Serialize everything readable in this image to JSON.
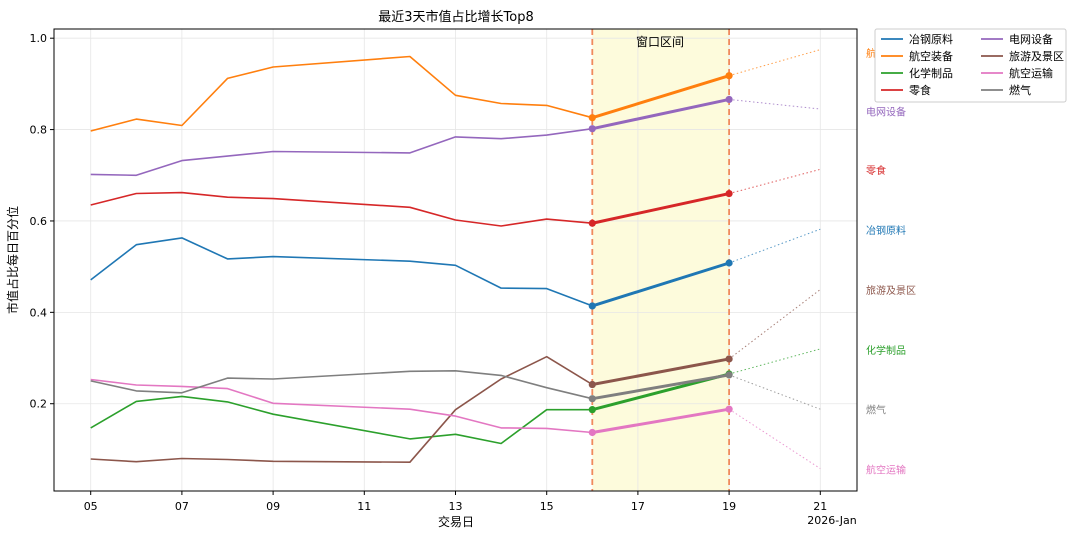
{
  "chart_data": {
    "type": "line",
    "title": "最近3天市值占比增长Top8",
    "xlabel": "交易日",
    "ylabel": "市值占比每日百分位",
    "xlim": [
      "2026-01-03.8",
      "2026-01-21.8"
    ],
    "ylim": [
      0.02,
      1.02
    ],
    "x_ticks": [
      "05",
      "07",
      "09",
      "11",
      "13",
      "15",
      "17",
      "19",
      "21"
    ],
    "x_tick_dates": [
      "2026-01-05",
      "2026-01-07",
      "2026-01-09",
      "2026-01-11",
      "2026-01-13",
      "2026-01-15",
      "2026-01-17",
      "2026-01-19",
      "2026-01-21"
    ],
    "x_axis_suffix": "2026-Jan",
    "y_ticks": [
      0.2,
      0.4,
      0.6,
      0.8,
      1.0
    ],
    "y_tick_labels": [
      "0.2",
      "0.4",
      "0.6",
      "0.8",
      "1.0"
    ],
    "grid": true,
    "legend_position": "outside top-right",
    "legend_columns": 2,
    "window": {
      "label": "窗口区间",
      "start": "2026-01-16",
      "end": "2026-01-19",
      "fill_color": "#fdfbdc",
      "line_color": "#f08a5d"
    },
    "x": [
      "2026-01-05",
      "2026-01-06",
      "2026-01-07",
      "2026-01-08",
      "2026-01-09",
      "2026-01-12",
      "2026-01-13",
      "2026-01-14",
      "2026-01-15",
      "2026-01-16",
      "2026-01-19"
    ],
    "series": [
      {
        "name": "冶钢原料",
        "color": "#1f77b4",
        "values": [
          0.471,
          0.548,
          0.563,
          0.517,
          0.522,
          0.512,
          0.503,
          0.453,
          0.452,
          0.414,
          0.508
        ],
        "projection": 0.582
      },
      {
        "name": "航空装备",
        "color": "#ff7f0e",
        "values": [
          0.797,
          0.823,
          0.809,
          0.912,
          0.937,
          0.96,
          0.875,
          0.857,
          0.853,
          0.826,
          0.918
        ],
        "projection": 0.975
      },
      {
        "name": "化学制品",
        "color": "#2ca02c",
        "values": [
          0.147,
          0.205,
          0.216,
          0.204,
          0.177,
          0.123,
          0.133,
          0.113,
          0.187,
          0.187,
          0.265
        ],
        "projection": 0.32
      },
      {
        "name": "零食",
        "color": "#d62728",
        "values": [
          0.635,
          0.66,
          0.662,
          0.652,
          0.649,
          0.63,
          0.602,
          0.589,
          0.604,
          0.595,
          0.66
        ],
        "projection": 0.713
      },
      {
        "name": "电网设备",
        "color": "#9467bd",
        "values": [
          0.702,
          0.7,
          0.732,
          0.742,
          0.752,
          0.749,
          0.784,
          0.78,
          0.788,
          0.802,
          0.866
        ],
        "projection": 0.845
      },
      {
        "name": "旅游及景区",
        "color": "#8c564b",
        "values": [
          0.079,
          0.073,
          0.08,
          0.078,
          0.074,
          0.072,
          0.187,
          0.254,
          0.303,
          0.242,
          0.298
        ],
        "projection": 0.45
      },
      {
        "name": "航空运输",
        "color": "#e377c2",
        "values": [
          0.253,
          0.241,
          0.238,
          0.233,
          0.201,
          0.188,
          0.173,
          0.147,
          0.146,
          0.137,
          0.188
        ],
        "projection": 0.058
      },
      {
        "name": "燃气",
        "color": "#7f7f7f",
        "values": [
          0.25,
          0.228,
          0.224,
          0.256,
          0.254,
          0.271,
          0.272,
          0.262,
          0.235,
          0.211,
          0.263
        ],
        "projection": 0.188
      }
    ],
    "right_labels": [
      {
        "text": "航空装备",
        "y": 0.968
      },
      {
        "text": "电网设备",
        "y": 0.84
      },
      {
        "text": "零食",
        "y": 0.711
      },
      {
        "text": "冶钢原料",
        "y": 0.58
      },
      {
        "text": "旅游及景区",
        "y": 0.449
      },
      {
        "text": "化学制品",
        "y": 0.318
      },
      {
        "text": "燃气",
        "y": 0.187
      },
      {
        "text": "航空运输",
        "y": 0.056
      }
    ]
  }
}
